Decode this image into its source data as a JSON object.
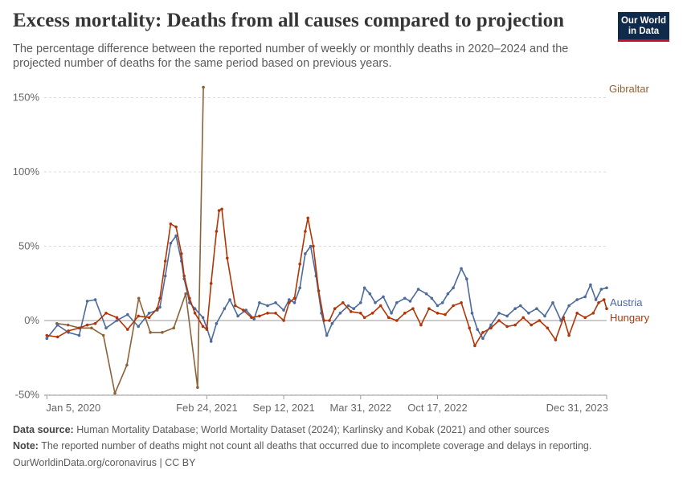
{
  "header": {
    "title": "Excess mortality: Deaths from all causes compared to projection",
    "subtitle": "The percentage difference between the reported number of weekly or monthly deaths in 2020–2024 and the projected number of deaths for the same period based on previous years.",
    "logo_line1": "Our World",
    "logo_line2": "in Data"
  },
  "footer": {
    "source_label": "Data source:",
    "source_text": "Human Mortality Database; World Mortality Dataset (2024); Karlinsky and Kobak (2021) and other sources",
    "note_label": "Note:",
    "note_text": "The reported number of deaths might not count all deaths that occurred due to incomplete coverage and delays in reporting.",
    "credit": "OurWorldinData.org/coronavirus | CC BY"
  },
  "colors": {
    "austria": "#4c6a9c",
    "hungary": "#b13507",
    "gibraltar": "#8c6239",
    "grid": "#dddddd",
    "zero_line": "#999999"
  },
  "chart_data": {
    "type": "line",
    "title": "Excess mortality: Deaths from all causes compared to projection",
    "ylim": [
      -50,
      160
    ],
    "y_ticks": [
      -50,
      0,
      50,
      100,
      150
    ],
    "y_tick_labels": [
      "-50%",
      "0%",
      "50%",
      "100%",
      "150%"
    ],
    "x_range": [
      "2019-12-29",
      "2023-12-31"
    ],
    "x_ticks": [
      "2020-01-05",
      "2021-02-24",
      "2021-09-12",
      "2022-03-31",
      "2022-10-17",
      "2023-12-31"
    ],
    "x_tick_labels": [
      "Jan 5, 2020",
      "Feb 24, 2021",
      "Sep 12, 2021",
      "Mar 31, 2022",
      "Oct 17, 2022",
      "Dec 31, 2023"
    ],
    "grid": "horizontal-dashed",
    "legend": "line-end labels",
    "series": [
      {
        "name": "Austria",
        "points": [
          [
            "2020-01-05",
            -12
          ],
          [
            "2020-02-02",
            -3
          ],
          [
            "2020-03-01",
            -8
          ],
          [
            "2020-03-29",
            -10
          ],
          [
            "2020-04-19",
            13
          ],
          [
            "2020-05-10",
            14
          ],
          [
            "2020-06-07",
            -5
          ],
          [
            "2020-07-05",
            0
          ],
          [
            "2020-08-02",
            4
          ],
          [
            "2020-08-30",
            -4
          ],
          [
            "2020-09-27",
            5
          ],
          [
            "2020-10-18",
            7
          ],
          [
            "2020-10-25",
            9
          ],
          [
            "2020-11-08",
            30
          ],
          [
            "2020-11-22",
            52
          ],
          [
            "2020-12-06",
            57
          ],
          [
            "2020-12-20",
            40
          ],
          [
            "2020-12-27",
            28
          ],
          [
            "2021-01-10",
            12
          ],
          [
            "2021-01-24",
            8
          ],
          [
            "2021-02-14",
            2
          ],
          [
            "2021-02-24",
            -5
          ],
          [
            "2021-03-07",
            -14
          ],
          [
            "2021-03-21",
            -2
          ],
          [
            "2021-04-11",
            8
          ],
          [
            "2021-04-25",
            14
          ],
          [
            "2021-05-16",
            3
          ],
          [
            "2021-06-06",
            7
          ],
          [
            "2021-06-27",
            1
          ],
          [
            "2021-07-11",
            12
          ],
          [
            "2021-08-01",
            10
          ],
          [
            "2021-08-22",
            12
          ],
          [
            "2021-09-12",
            7
          ],
          [
            "2021-09-26",
            14
          ],
          [
            "2021-10-10",
            12
          ],
          [
            "2021-10-24",
            22
          ],
          [
            "2021-11-07",
            45
          ],
          [
            "2021-11-21",
            50
          ],
          [
            "2021-12-05",
            30
          ],
          [
            "2021-12-19",
            5
          ],
          [
            "2022-01-02",
            -10
          ],
          [
            "2022-01-16",
            -2
          ],
          [
            "2022-02-06",
            5
          ],
          [
            "2022-02-27",
            10
          ],
          [
            "2022-03-13",
            8
          ],
          [
            "2022-03-31",
            12
          ],
          [
            "2022-04-10",
            22
          ],
          [
            "2022-04-24",
            18
          ],
          [
            "2022-05-08",
            12
          ],
          [
            "2022-05-29",
            16
          ],
          [
            "2022-06-19",
            5
          ],
          [
            "2022-07-03",
            12
          ],
          [
            "2022-07-24",
            15
          ],
          [
            "2022-08-07",
            13
          ],
          [
            "2022-08-28",
            21
          ],
          [
            "2022-09-18",
            18
          ],
          [
            "2022-10-02",
            15
          ],
          [
            "2022-10-17",
            10
          ],
          [
            "2022-10-30",
            12
          ],
          [
            "2022-11-13",
            18
          ],
          [
            "2022-11-27",
            22
          ],
          [
            "2022-12-18",
            35
          ],
          [
            "2023-01-01",
            28
          ],
          [
            "2023-01-15",
            5
          ],
          [
            "2023-01-29",
            -6
          ],
          [
            "2023-02-12",
            -12
          ],
          [
            "2023-03-05",
            -3
          ],
          [
            "2023-03-26",
            5
          ],
          [
            "2023-04-16",
            3
          ],
          [
            "2023-05-07",
            8
          ],
          [
            "2023-05-21",
            10
          ],
          [
            "2023-06-11",
            5
          ],
          [
            "2023-07-02",
            8
          ],
          [
            "2023-07-23",
            3
          ],
          [
            "2023-08-13",
            12
          ],
          [
            "2023-09-03",
            0
          ],
          [
            "2023-09-24",
            10
          ],
          [
            "2023-10-15",
            14
          ],
          [
            "2023-11-05",
            16
          ],
          [
            "2023-11-19",
            24
          ],
          [
            "2023-12-03",
            14
          ],
          [
            "2023-12-17",
            21
          ],
          [
            "2023-12-31",
            22
          ]
        ]
      },
      {
        "name": "Hungary",
        "points": [
          [
            "2020-01-05",
            -10
          ],
          [
            "2020-02-02",
            -11
          ],
          [
            "2020-03-01",
            -7
          ],
          [
            "2020-03-29",
            -5
          ],
          [
            "2020-04-19",
            -3
          ],
          [
            "2020-05-10",
            -2
          ],
          [
            "2020-06-07",
            5
          ],
          [
            "2020-07-05",
            2
          ],
          [
            "2020-08-02",
            -6
          ],
          [
            "2020-08-30",
            3
          ],
          [
            "2020-09-27",
            2
          ],
          [
            "2020-10-18",
            8
          ],
          [
            "2020-10-25",
            15
          ],
          [
            "2020-11-08",
            40
          ],
          [
            "2020-11-22",
            65
          ],
          [
            "2020-12-06",
            63
          ],
          [
            "2020-12-20",
            45
          ],
          [
            "2020-12-27",
            30
          ],
          [
            "2021-01-10",
            15
          ],
          [
            "2021-01-24",
            5
          ],
          [
            "2021-02-14",
            -4
          ],
          [
            "2021-02-24",
            -6
          ],
          [
            "2021-03-07",
            25
          ],
          [
            "2021-03-21",
            60
          ],
          [
            "2021-03-28",
            74
          ],
          [
            "2021-04-04",
            75
          ],
          [
            "2021-04-18",
            42
          ],
          [
            "2021-05-09",
            10
          ],
          [
            "2021-05-30",
            7
          ],
          [
            "2021-06-20",
            2
          ],
          [
            "2021-07-11",
            3
          ],
          [
            "2021-08-01",
            5
          ],
          [
            "2021-08-22",
            5
          ],
          [
            "2021-09-12",
            0
          ],
          [
            "2021-09-26",
            12
          ],
          [
            "2021-10-10",
            15
          ],
          [
            "2021-10-24",
            38
          ],
          [
            "2021-11-07",
            60
          ],
          [
            "2021-11-14",
            69
          ],
          [
            "2021-11-28",
            50
          ],
          [
            "2021-12-12",
            20
          ],
          [
            "2021-12-26",
            0
          ],
          [
            "2022-01-09",
            0
          ],
          [
            "2022-01-23",
            8
          ],
          [
            "2022-02-13",
            12
          ],
          [
            "2022-03-06",
            6
          ],
          [
            "2022-03-31",
            5
          ],
          [
            "2022-04-10",
            2
          ],
          [
            "2022-05-01",
            5
          ],
          [
            "2022-05-22",
            10
          ],
          [
            "2022-06-12",
            2
          ],
          [
            "2022-07-03",
            0
          ],
          [
            "2022-07-24",
            5
          ],
          [
            "2022-08-14",
            8
          ],
          [
            "2022-09-04",
            -3
          ],
          [
            "2022-09-25",
            8
          ],
          [
            "2022-10-17",
            5
          ],
          [
            "2022-11-06",
            4
          ],
          [
            "2022-11-27",
            10
          ],
          [
            "2022-12-18",
            12
          ],
          [
            "2023-01-08",
            -5
          ],
          [
            "2023-01-22",
            -17
          ],
          [
            "2023-02-12",
            -8
          ],
          [
            "2023-03-05",
            -5
          ],
          [
            "2023-03-26",
            0
          ],
          [
            "2023-04-16",
            -4
          ],
          [
            "2023-05-07",
            -3
          ],
          [
            "2023-05-28",
            2
          ],
          [
            "2023-06-18",
            -3
          ],
          [
            "2023-07-09",
            0
          ],
          [
            "2023-07-30",
            -5
          ],
          [
            "2023-08-20",
            -13
          ],
          [
            "2023-09-10",
            2
          ],
          [
            "2023-09-24",
            -10
          ],
          [
            "2023-10-15",
            5
          ],
          [
            "2023-11-05",
            2
          ],
          [
            "2023-11-26",
            5
          ],
          [
            "2023-12-10",
            12
          ],
          [
            "2023-12-24",
            14
          ],
          [
            "2023-12-31",
            8
          ]
        ]
      },
      {
        "name": "Gibraltar",
        "points": [
          [
            "2020-01-31",
            -2
          ],
          [
            "2020-02-29",
            -3
          ],
          [
            "2020-03-31",
            -5
          ],
          [
            "2020-04-30",
            -5
          ],
          [
            "2020-05-31",
            -10
          ],
          [
            "2020-06-30",
            -49
          ],
          [
            "2020-07-31",
            -30
          ],
          [
            "2020-08-31",
            15
          ],
          [
            "2020-09-30",
            -8
          ],
          [
            "2020-10-31",
            -8
          ],
          [
            "2020-11-30",
            -5
          ],
          [
            "2020-12-31",
            18
          ],
          [
            "2021-01-31",
            -45
          ],
          [
            "2021-02-15",
            157
          ]
        ]
      }
    ]
  }
}
